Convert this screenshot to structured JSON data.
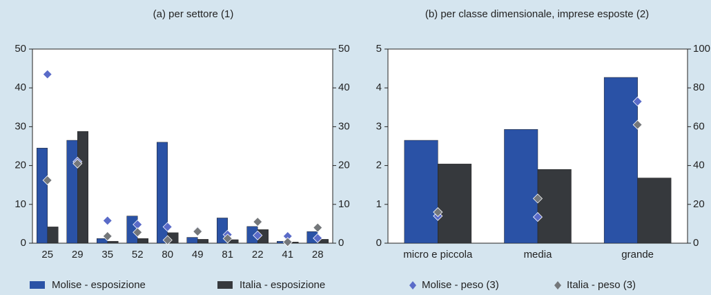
{
  "chart_data": [
    {
      "type": "bar",
      "title": "(a) per settore (1)",
      "categories": [
        "25",
        "29",
        "35",
        "52",
        "80",
        "49",
        "81",
        "22",
        "41",
        "28"
      ],
      "series": [
        {
          "name": "Molise - esposizione",
          "color": "#2a52a6",
          "values": [
            24.5,
            26.5,
            1.2,
            7,
            26,
            1.5,
            6.5,
            4.3,
            0.5,
            3
          ]
        },
        {
          "name": "Italia - esposizione",
          "color": "#36393d",
          "values": [
            4.2,
            28.8,
            0.5,
            1.2,
            2.7,
            1,
            0.9,
            3.5,
            0.3,
            1
          ]
        },
        {
          "name": "Molise - peso (3)",
          "color": "#5a6bc8",
          "axis": "y2",
          "marker": "diamond",
          "values": [
            43.5,
            21,
            5.8,
            4.8,
            4.2,
            3.2,
            2.2,
            2,
            1.8,
            1.3
          ]
        },
        {
          "name": "Italia - peso (3)",
          "color": "#74777a",
          "axis": "y2",
          "marker": "diamond",
          "values": [
            16.2,
            20.5,
            1.8,
            2.8,
            0.8,
            3,
            1.2,
            5.5,
            0.3,
            4
          ]
        }
      ],
      "ylim": [
        0,
        50
      ],
      "yticks": [
        0,
        10,
        20,
        30,
        40,
        50
      ],
      "y2lim": [
        0,
        50
      ],
      "y2ticks": [
        0,
        10,
        20,
        30,
        40,
        50
      ]
    },
    {
      "type": "bar",
      "title": "(b) per classe dimensionale, imprese esposte (2)",
      "categories": [
        "micro e piccola",
        "media",
        "grande"
      ],
      "series": [
        {
          "name": "Molise - esposizione",
          "color": "#2a52a6",
          "values": [
            2.65,
            2.93,
            4.27
          ]
        },
        {
          "name": "Italia - esposizione",
          "color": "#36393d",
          "values": [
            2.04,
            1.9,
            1.68
          ]
        },
        {
          "name": "Molise - peso (3)",
          "color": "#5a6bc8",
          "axis": "y2",
          "marker": "diamond",
          "values": [
            14,
            13.5,
            73
          ]
        },
        {
          "name": "Italia - peso (3)",
          "color": "#74777a",
          "axis": "y2",
          "marker": "diamond",
          "values": [
            16,
            23,
            61
          ]
        }
      ],
      "ylim": [
        0,
        5
      ],
      "yticks": [
        0,
        1,
        2,
        3,
        4,
        5
      ],
      "y2lim": [
        0,
        100
      ],
      "y2ticks": [
        0,
        20,
        40,
        60,
        80,
        100
      ]
    }
  ]
}
